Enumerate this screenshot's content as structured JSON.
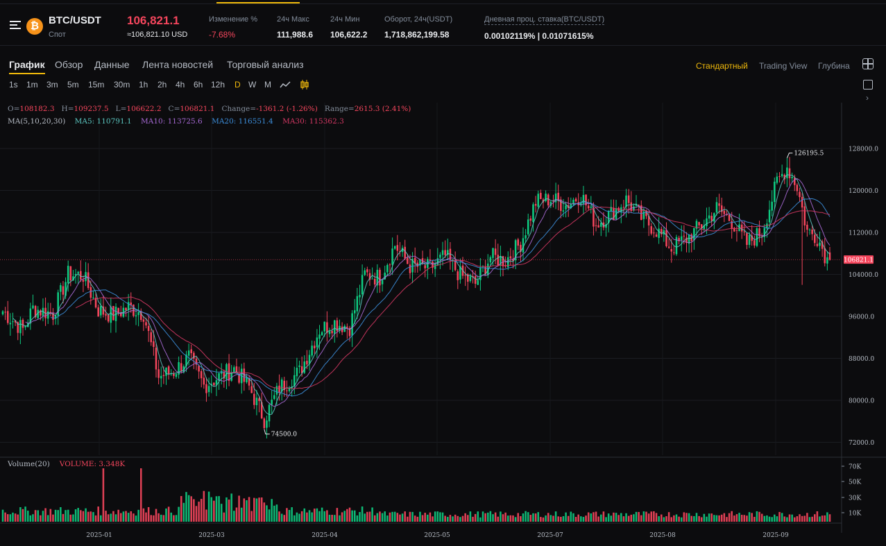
{
  "header": {
    "pair": "BTC/USDT",
    "market": "Спот",
    "last_price": "106,821.1",
    "last_price_usd": "≈106,821.10 USD",
    "stats": [
      {
        "label": "Изменение %",
        "value": "-7.68%",
        "tone": "red"
      },
      {
        "label": "24ч Макс",
        "value": "111,988.6",
        "tone": "normal"
      },
      {
        "label": "24ч Мин",
        "value": "106,622.2",
        "tone": "normal"
      },
      {
        "label": "Оборот, 24ч(USDT)",
        "value": "1,718,862,199.58",
        "tone": "normal"
      },
      {
        "label": "Дневная проц. ставка(BTC/USDT)",
        "value": "0.00102119% | 0.01071615%",
        "tone": "normal"
      }
    ]
  },
  "tabs": [
    "График",
    "Обзор",
    "Данные",
    "Лента новостей",
    "Торговый анализ"
  ],
  "active_tab": "График",
  "views": [
    "Стандартный",
    "Trading View",
    "Глубина"
  ],
  "active_view": "Стандартный",
  "intervals": [
    "1s",
    "1m",
    "3m",
    "5m",
    "15m",
    "30m",
    "1h",
    "2h",
    "4h",
    "6h",
    "12h",
    "D",
    "W",
    "M"
  ],
  "active_interval": "D",
  "legend": {
    "ohlc": [
      {
        "key": "O=",
        "value": "108182.3"
      },
      {
        "key": "H=",
        "value": "109237.5"
      },
      {
        "key": "L=",
        "value": "106622.2"
      },
      {
        "key": "C=",
        "value": "106821.1"
      },
      {
        "key": "Change=",
        "value": "-1361.2 (-1.26%)"
      },
      {
        "key": "Range=",
        "value": "2615.3 (2.41%)"
      }
    ],
    "ma_title": "MA(5,10,20,30)",
    "ma": [
      {
        "label": "MA5: 110791.1",
        "color": "#5cc8c2"
      },
      {
        "label": "MA10: 113725.6",
        "color": "#a86ad6"
      },
      {
        "label": "MA20: 116551.4",
        "color": "#3d8fdc"
      },
      {
        "label": "MA30: 115362.3",
        "color": "#d63864"
      }
    ],
    "volume_title": "Volume(20)",
    "volume_value": "VOLUME: 3.348K"
  },
  "colors": {
    "up": "#0ecb81",
    "down": "#f6465d",
    "accent": "#f0b90b"
  },
  "chart_data": {
    "type": "candlestick",
    "price_ticks": [
      "128000.0",
      "120000.0",
      "112000.0",
      "104000.0",
      "96000.0",
      "88000.0",
      "80000.0",
      "72000.0"
    ],
    "volume_ticks": [
      "70K",
      "50K",
      "30K",
      "10K"
    ],
    "x_ticks": [
      "2025-01",
      "2025-03",
      "2025-04",
      "2025-05",
      "2025-07",
      "2025-08",
      "2025-09"
    ],
    "last_price_label": "106821.1",
    "max_label": "126195.5",
    "min_label": "74500.0",
    "ylim": [
      70000,
      130000
    ],
    "close_path": [
      [
        0,
        97000
      ],
      [
        8,
        93500
      ],
      [
        12,
        97500
      ],
      [
        20,
        96500
      ],
      [
        26,
        104000
      ],
      [
        32,
        103800
      ],
      [
        38,
        97200
      ],
      [
        44,
        96200
      ],
      [
        50,
        97800
      ],
      [
        56,
        96600
      ],
      [
        62,
        84500
      ],
      [
        68,
        85500
      ],
      [
        74,
        88200
      ],
      [
        80,
        82800
      ],
      [
        86,
        84500
      ],
      [
        92,
        86000
      ],
      [
        98,
        82500
      ],
      [
        104,
        76400
      ],
      [
        110,
        82400
      ],
      [
        118,
        85400
      ],
      [
        126,
        93500
      ],
      [
        132,
        94800
      ],
      [
        138,
        94000
      ],
      [
        144,
        104000
      ],
      [
        150,
        103400
      ],
      [
        156,
        109600
      ],
      [
        162,
        105600
      ],
      [
        170,
        105200
      ],
      [
        176,
        107500
      ],
      [
        182,
        103800
      ],
      [
        188,
        102200
      ],
      [
        194,
        107400
      ],
      [
        200,
        106600
      ],
      [
        206,
        110000
      ],
      [
        212,
        117800
      ],
      [
        218,
        118400
      ],
      [
        224,
        117200
      ],
      [
        230,
        119200
      ],
      [
        236,
        113600
      ],
      [
        242,
        115600
      ],
      [
        248,
        118200
      ],
      [
        254,
        114800
      ],
      [
        260,
        112500
      ],
      [
        266,
        109000
      ],
      [
        272,
        110800
      ],
      [
        278,
        113400
      ],
      [
        284,
        116600
      ],
      [
        290,
        114200
      ],
      [
        296,
        109800
      ],
      [
        302,
        112200
      ],
      [
        308,
        121500
      ],
      [
        312,
        124500
      ],
      [
        316,
        120800
      ],
      [
        320,
        112200
      ],
      [
        324,
        111200
      ],
      [
        328,
        106821
      ]
    ],
    "n_days": 330
  }
}
